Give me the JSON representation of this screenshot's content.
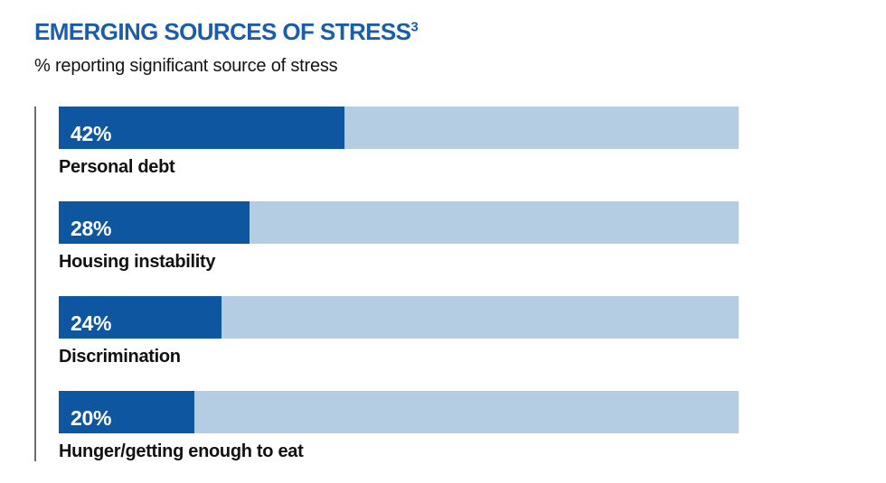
{
  "header": {
    "title": "EMERGING SOURCES OF STRESS",
    "footnote_marker": "3",
    "subtitle": "% reporting significant source of stress"
  },
  "colors": {
    "title_blue": "#1b5da9",
    "bar_fill_blue": "#0f56a1",
    "bar_track_blue": "#b5cde2",
    "axis_line_gray": "#6e6e6e",
    "label_black": "#111111",
    "value_white": "#ffffff"
  },
  "chart_data": {
    "type": "bar",
    "orientation": "horizontal",
    "title": "EMERGING SOURCES OF STRESS",
    "subtitle": "% reporting significant source of stress",
    "categories": [
      "Personal debt",
      "Housing instability",
      "Discrimination",
      "Hunger/getting enough to eat"
    ],
    "values": [
      42,
      28,
      24,
      20
    ],
    "value_labels": [
      "42%",
      "28%",
      "24%",
      "20%"
    ],
    "xlim": [
      0,
      100
    ],
    "grid": false,
    "legend": false,
    "value_label_position": "inside-left",
    "category_label_position": "below-bar"
  }
}
